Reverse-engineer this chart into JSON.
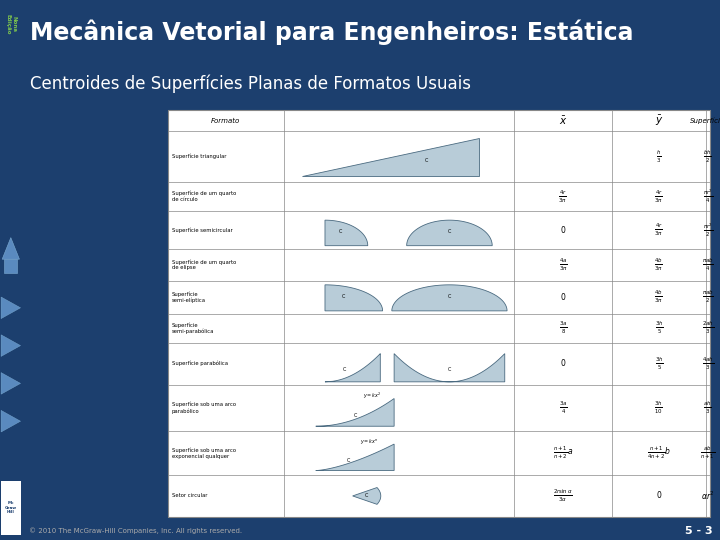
{
  "title": "Mecânica Vetorial para Engenheiros: Estática",
  "subtitle": "Centroides de Superfícies Planas de Formatos Usuais",
  "title_bg": "#1c3f6e",
  "subtitle_bg": "#6b7c3a",
  "left_bar_bg": "#0d2240",
  "page_bg": "#1c3f6e",
  "table_bg": "#ffffff",
  "footer_text": "© 2010 The McGraw-Hill Companies, Inc. All rights reserved.",
  "footer_page": "5 - 3",
  "shape_fill": "#b8ccd8",
  "shape_edge": "#4a6a80"
}
